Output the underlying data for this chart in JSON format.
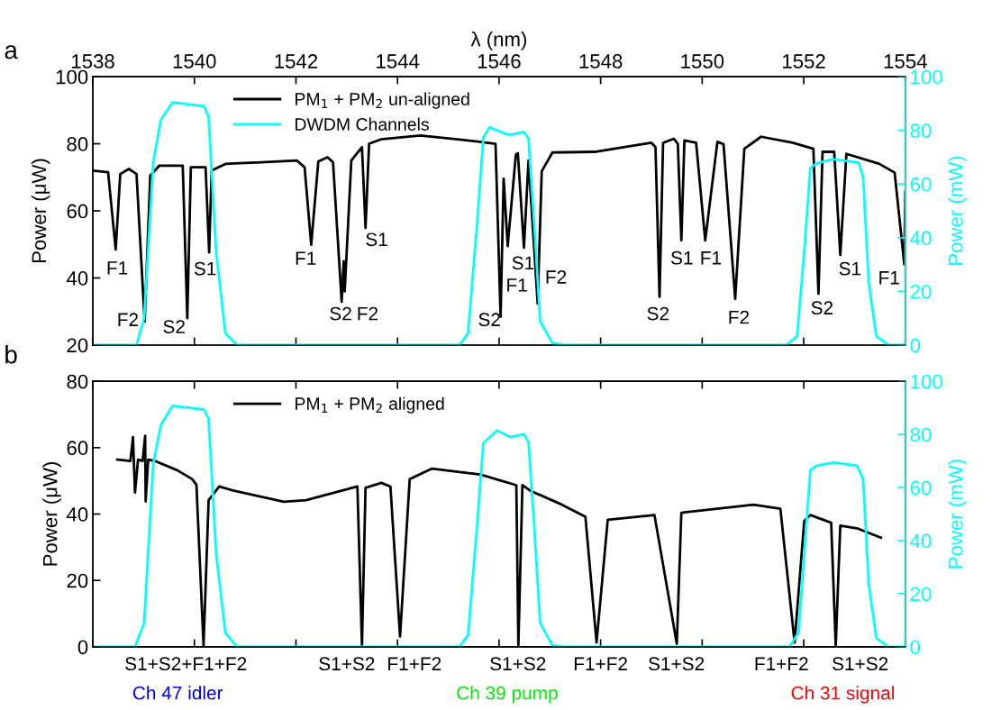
{
  "chart_data": [
    {
      "type": "line",
      "xlabel": "λ (nm)",
      "ylabel": "Power (μW)",
      "y2label": "Power (mW)",
      "xlim": [
        1538,
        1554
      ],
      "xticks": [
        1538,
        1540,
        1542,
        1544,
        1546,
        1548,
        1550,
        1552,
        1554
      ],
      "ylim": [
        20,
        100
      ],
      "yticks": [
        20,
        40,
        60,
        80,
        100
      ],
      "y2lim": [
        0,
        100
      ],
      "y2ticks": [
        0,
        20,
        40,
        60,
        80,
        100
      ],
      "grid": false,
      "legend": "top left",
      "series": [
        {
          "name": "PM$_{1}$ + PM$_{2}$ un-aligned",
          "color": "#000000",
          "x": [
            1538.0,
            1538.3,
            1538.45,
            1538.54,
            1538.71,
            1538.86,
            1539.02,
            1539.13,
            1539.31,
            1539.77,
            1539.86,
            1539.93,
            1540.22,
            1540.29,
            1540.34,
            1540.61,
            1541.32,
            1542.02,
            1542.17,
            1542.3,
            1542.44,
            1542.62,
            1542.73,
            1542.9,
            1542.94,
            1542.96,
            1543.09,
            1543.3,
            1543.37,
            1543.44,
            1543.67,
            1544.45,
            1545.62,
            1545.93,
            1546.03,
            1546.09,
            1546.17,
            1546.33,
            1546.37,
            1546.49,
            1546.58,
            1546.76,
            1546.84,
            1547.05,
            1547.88,
            1549.0,
            1549.08,
            1549.16,
            1549.23,
            1549.44,
            1549.52,
            1549.59,
            1549.65,
            1549.88,
            1550.06,
            1550.3,
            1550.42,
            1550.65,
            1550.83,
            1551.16,
            1551.78,
            1552.19,
            1552.29,
            1552.37,
            1552.6,
            1552.72,
            1552.84,
            1553.49,
            1553.79,
            1553.98,
            1554.0
          ],
          "values": [
            72,
            71.5,
            48.5,
            71,
            72.5,
            71,
            27,
            70.5,
            73.5,
            73.5,
            28,
            73,
            73,
            47.6,
            72,
            74,
            74.5,
            75,
            73,
            49.9,
            74.7,
            76,
            74.5,
            32.9,
            45,
            36,
            75,
            79,
            54.9,
            80,
            81.3,
            82.5,
            80.6,
            80,
            28.4,
            69.6,
            49.5,
            76.7,
            77.2,
            49,
            75,
            32.4,
            71.8,
            77.4,
            77.6,
            80.3,
            79,
            34.4,
            80.3,
            81.5,
            80,
            51.2,
            81,
            80.3,
            51.2,
            80.6,
            79.9,
            33.8,
            78.5,
            82.1,
            80.3,
            78.5,
            35.3,
            77.6,
            77.6,
            46.9,
            77,
            74,
            71.4,
            44.1,
            65.6
          ]
        },
        {
          "name": "DWDM Channels",
          "color": "#00ffff",
          "axis": "y2",
          "x": [
            1538.0,
            1538.86,
            1539.01,
            1539.19,
            1539.34,
            1539.57,
            1539.9,
            1540.19,
            1540.28,
            1540.43,
            1540.61,
            1540.84,
            1545.22,
            1545.39,
            1545.57,
            1545.69,
            1545.81,
            1546.16,
            1546.25,
            1546.49,
            1546.58,
            1546.69,
            1546.81,
            1547.05,
            1547.29,
            1551.66,
            1551.87,
            1552.01,
            1552.13,
            1552.25,
            1552.57,
            1553.08,
            1553.17,
            1553.28,
            1553.43,
            1553.67,
            1554.0
          ],
          "values": [
            0,
            0,
            10,
            68,
            84,
            90.4,
            89.7,
            89,
            85,
            34.6,
            4.4,
            0,
            0,
            4.4,
            45.8,
            77.2,
            81.1,
            78.5,
            78.4,
            79.4,
            77,
            45.8,
            8.8,
            0.8,
            0,
            0,
            3.3,
            34.6,
            66,
            67.7,
            69.3,
            68,
            62.6,
            23.4,
            3.3,
            0,
            0
          ]
        }
      ],
      "annotations": [
        "a",
        "F1",
        "F2",
        "S2",
        "S1",
        "F1",
        "S1",
        "S2",
        "F2",
        "S2",
        "S1",
        "F1",
        "F2",
        "S2",
        "S1",
        "F1",
        "F2",
        "S2",
        "S1",
        "F1"
      ]
    },
    {
      "type": "line",
      "ylabel": "Power (μW)",
      "y2label": "Power (mW)",
      "xlim": [
        1538,
        1554
      ],
      "xticks": [
        {
          "value": 1538,
          "label": null
        },
        {
          "value": 1540,
          "label": null
        },
        {
          "value": 1542,
          "label": null
        },
        {
          "value": 1544,
          "label": null
        },
        {
          "value": 1546,
          "label": null
        },
        {
          "value": 1548,
          "label": null
        },
        {
          "value": 1550,
          "label": null
        },
        {
          "value": 1552,
          "label": null
        },
        {
          "value": 1554,
          "label": null
        }
      ],
      "tick_labels": "y",
      "ylim": [
        0,
        80
      ],
      "yticks": [
        0,
        20,
        40,
        60,
        80
      ],
      "y2lim": [
        0,
        100
      ],
      "y2ticks": [
        0,
        20,
        40,
        60,
        80,
        100
      ],
      "grid": false,
      "legend": "top left",
      "series": [
        {
          "name": "PM$_{1}$ + PM$_{2}$ aligned",
          "color": "#000000",
          "x": [
            1538.48,
            1538.74,
            1538.79,
            1538.83,
            1538.89,
            1538.98,
            1539.03,
            1539.04,
            1539.09,
            1539.22,
            1539.66,
            1539.96,
            1540.04,
            1540.18,
            1540.28,
            1540.49,
            1540.78,
            1541.76,
            1542.2,
            1543.21,
            1543.3,
            1543.37,
            1543.68,
            1543.86,
            1544.05,
            1544.24,
            1544.68,
            1545.63,
            1546.34,
            1546.38,
            1546.46,
            1546.63,
            1547.17,
            1547.7,
            1547.92,
            1548.14,
            1549.06,
            1549.5,
            1549.59,
            1551.01,
            1551.54,
            1551.82,
            1552.01,
            1552.13,
            1552.54,
            1552.63,
            1552.72,
            1553.07,
            1553.52
          ],
          "values": [
            56.4,
            56,
            63.2,
            46.5,
            56.4,
            56,
            63.6,
            43.8,
            56.4,
            56,
            53.2,
            50.5,
            48.8,
            0.4,
            44.2,
            48.3,
            47,
            43.7,
            44.2,
            48.3,
            0.4,
            47.9,
            49.4,
            48.3,
            3.1,
            50.5,
            53.7,
            51.9,
            48.7,
            0.4,
            48.7,
            46.9,
            43.3,
            39.2,
            1.3,
            38.3,
            39.7,
            0.9,
            40.4,
            42.8,
            41.6,
            1.3,
            37.9,
            39.7,
            37.4,
            0.4,
            36.5,
            35.6,
            32.9
          ]
        },
        {
          "color": "#00ffff",
          "axis": "y2",
          "x": [
            1538.0,
            1538.83,
            1539.01,
            1539.19,
            1539.34,
            1539.57,
            1539.9,
            1540.19,
            1540.28,
            1540.43,
            1540.61,
            1540.84,
            1545.22,
            1545.39,
            1545.57,
            1545.69,
            1545.96,
            1546.22,
            1546.49,
            1546.58,
            1546.69,
            1546.81,
            1547.05,
            1547.29,
            1551.72,
            1551.9,
            1552.01,
            1552.13,
            1552.25,
            1552.6,
            1553.05,
            1553.17,
            1553.28,
            1553.43,
            1553.67,
            1554.0
          ],
          "values": [
            0,
            0,
            8.9,
            68.8,
            83.5,
            90.8,
            90,
            89.4,
            85.8,
            34.9,
            5.3,
            0,
            0,
            4.4,
            46.2,
            76.7,
            81.5,
            79,
            80.1,
            77,
            46.2,
            8.9,
            0.6,
            0,
            0,
            5.5,
            34.9,
            66.5,
            68.2,
            69.4,
            68.2,
            63.2,
            23.6,
            3.3,
            0,
            0
          ]
        }
      ],
      "annotations": [
        "b",
        "S1+S2+F1+F2",
        "S1+S2",
        "F1+F2",
        "S1+S2",
        "F1+F2",
        "S1+S2",
        "F1+F2",
        "S1+S2",
        "Ch 47 idler",
        "Ch 39 pump",
        "Ch 31 signal"
      ]
    }
  ]
}
